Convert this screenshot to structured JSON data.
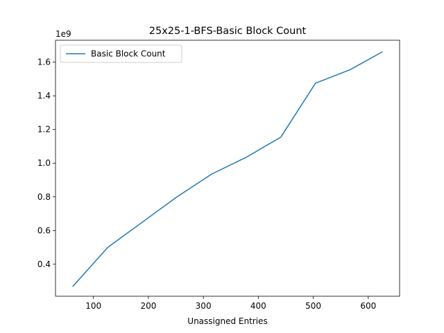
{
  "chart_data": {
    "type": "line",
    "title": "25x25-1-BFS-Basic Block Count",
    "xlabel": "Unassigned Entries",
    "ylabel": "",
    "y_offset_label": "1e9",
    "xlim": [
      31,
      657
    ],
    "ylim": [
      0.21,
      1.73
    ],
    "xticks": [
      100,
      200,
      300,
      400,
      500,
      600
    ],
    "yticks": [
      0.4,
      0.6,
      0.8,
      1.0,
      1.2,
      1.4,
      1.6
    ],
    "ytick_labels": [
      "0.4",
      "0.6",
      "0.8",
      "1.0",
      "1.2",
      "1.4",
      "1.6"
    ],
    "grid": false,
    "legend": "upper-left",
    "series": [
      {
        "name": "Basic Block Count",
        "color": "#1f77b4",
        "x": [
          63,
          126,
          189,
          252,
          315,
          378,
          441,
          504,
          567,
          625
        ],
        "y": [
          0.27,
          0.5,
          0.65,
          0.8,
          0.935,
          1.035,
          1.155,
          1.475,
          1.555,
          1.66
        ]
      }
    ]
  }
}
